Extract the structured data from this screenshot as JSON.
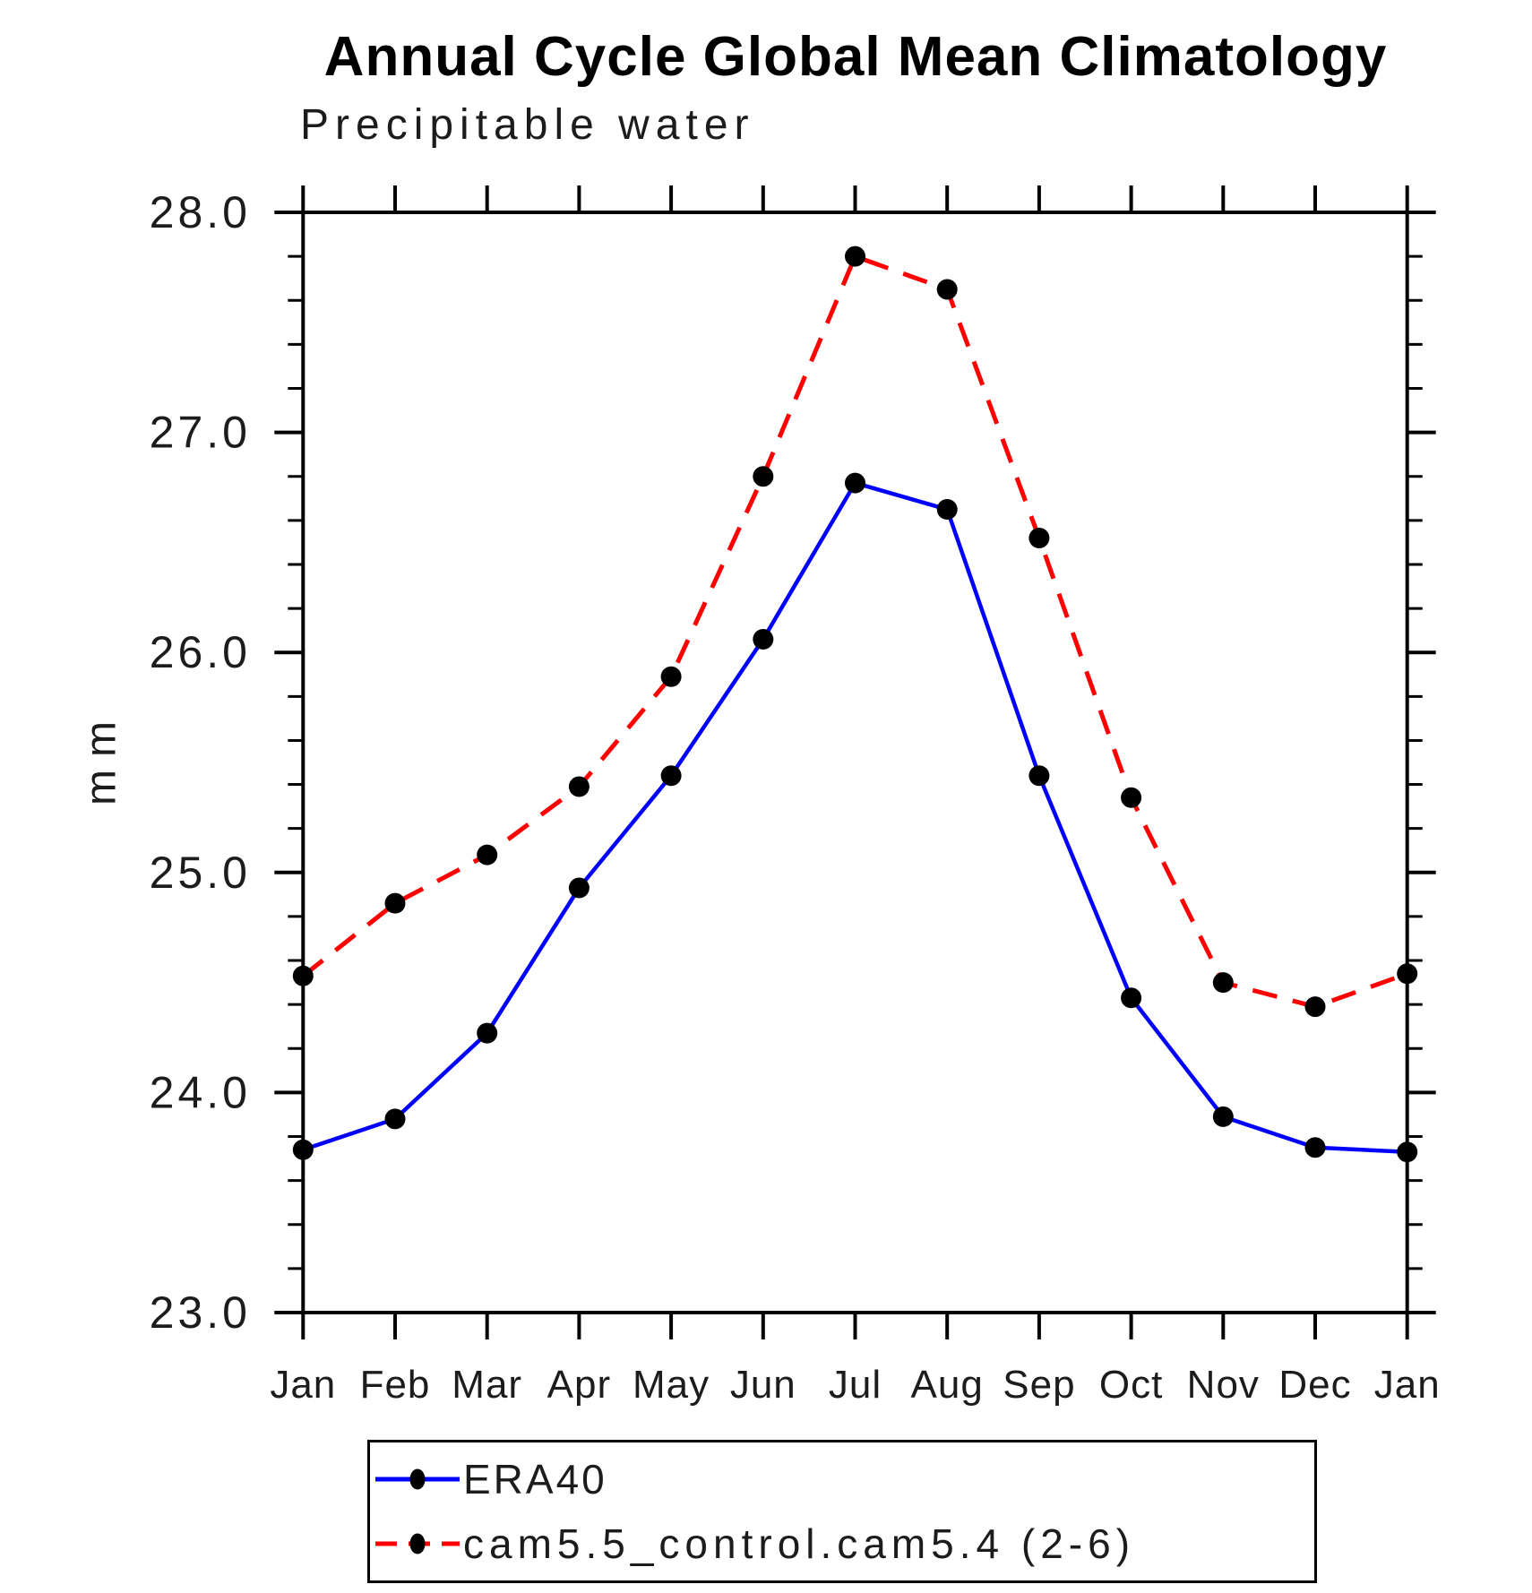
{
  "title": "Annual Cycle Global Mean Climatology",
  "subtitle": "Precipitable water",
  "ylabel": "mm",
  "chart_data": {
    "type": "line",
    "categories": [
      "Jan",
      "Feb",
      "Mar",
      "Apr",
      "May",
      "Jun",
      "Jul",
      "Aug",
      "Sep",
      "Oct",
      "Nov",
      "Dec",
      "Jan"
    ],
    "series": [
      {
        "name": "ERA40",
        "color": "#0000ff",
        "line_style": "solid",
        "marker": "filled-circle",
        "marker_color": "#000000",
        "values": [
          23.74,
          23.88,
          24.27,
          24.93,
          25.44,
          26.06,
          26.77,
          26.65,
          25.44,
          24.43,
          23.89,
          23.75,
          23.73
        ]
      },
      {
        "name": "cam5.5_control.cam5.4 (2-6)",
        "color": "#ff0000",
        "line_style": "dashed",
        "marker": "filled-circle",
        "marker_color": "#000000",
        "values": [
          24.53,
          24.86,
          25.08,
          25.39,
          25.89,
          26.8,
          27.8,
          27.65,
          26.52,
          25.34,
          24.5,
          24.39,
          24.54
        ]
      }
    ],
    "xlabel": "",
    "ylabel": "mm",
    "ylim": [
      23.0,
      28.0
    ],
    "yticks": [
      23.0,
      24.0,
      25.0,
      26.0,
      27.0,
      28.0
    ],
    "ytick_labels": [
      "23.0",
      "24.0",
      "25.0",
      "26.0",
      "27.0",
      "28.0"
    ],
    "minor_tick_step": 0.2,
    "grid": false,
    "legend_position": "bottom",
    "axis_color": "#000000"
  }
}
